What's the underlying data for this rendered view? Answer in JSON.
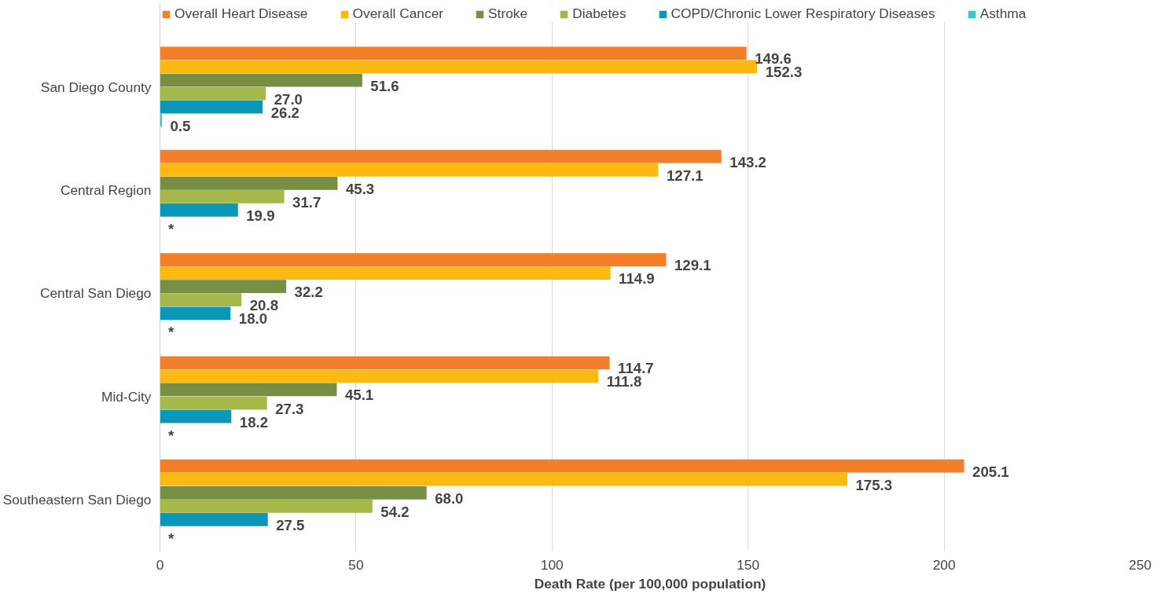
{
  "chart_data": {
    "type": "bar",
    "orientation": "horizontal",
    "xlabel": "Death Rate (per 100,000 population)",
    "categories": [
      "San Diego County",
      "Central Region",
      "Central San Diego",
      "Mid-City",
      "Southeastern San Diego"
    ],
    "series": [
      {
        "name": "Overall Heart Disease",
        "color": "#f47f2a",
        "values": [
          149.6,
          143.2,
          129.1,
          114.7,
          205.1
        ],
        "value_labels": [
          "149.6",
          "143.2",
          "129.1",
          "114.7",
          "205.1"
        ]
      },
      {
        "name": "Overall Cancer",
        "color": "#fdb913",
        "values": [
          152.3,
          127.1,
          114.9,
          111.8,
          175.3
        ],
        "value_labels": [
          "152.3",
          "127.1",
          "114.9",
          "111.8",
          "175.3"
        ]
      },
      {
        "name": "Stroke",
        "color": "#768f45",
        "values": [
          51.6,
          45.3,
          32.2,
          45.1,
          68.0
        ],
        "value_labels": [
          "51.6",
          "45.3",
          "32.2",
          "45.1",
          "68.0"
        ]
      },
      {
        "name": "Diabetes",
        "color": "#a5b94b",
        "values": [
          27.0,
          31.7,
          20.8,
          27.3,
          54.2
        ],
        "value_labels": [
          "27.0",
          "31.7",
          "20.8",
          "27.3",
          "54.2"
        ]
      },
      {
        "name": "COPD/Chronic Lower Respiratory Diseases",
        "color": "#0c97b8",
        "values": [
          26.2,
          19.9,
          18.0,
          18.2,
          27.5
        ],
        "value_labels": [
          "26.2",
          "19.9",
          "18.0",
          "18.2",
          "27.5"
        ]
      },
      {
        "name": "Asthma",
        "color": "#3ec3cf",
        "values": [
          0.5,
          null,
          null,
          null,
          null
        ],
        "value_labels": [
          "0.5",
          "*",
          "*",
          "*",
          "*"
        ]
      }
    ],
    "xlim": [
      0,
      250
    ],
    "xticks": [
      0,
      50,
      100,
      150,
      200,
      250
    ],
    "grid": "x",
    "legend": "top"
  }
}
